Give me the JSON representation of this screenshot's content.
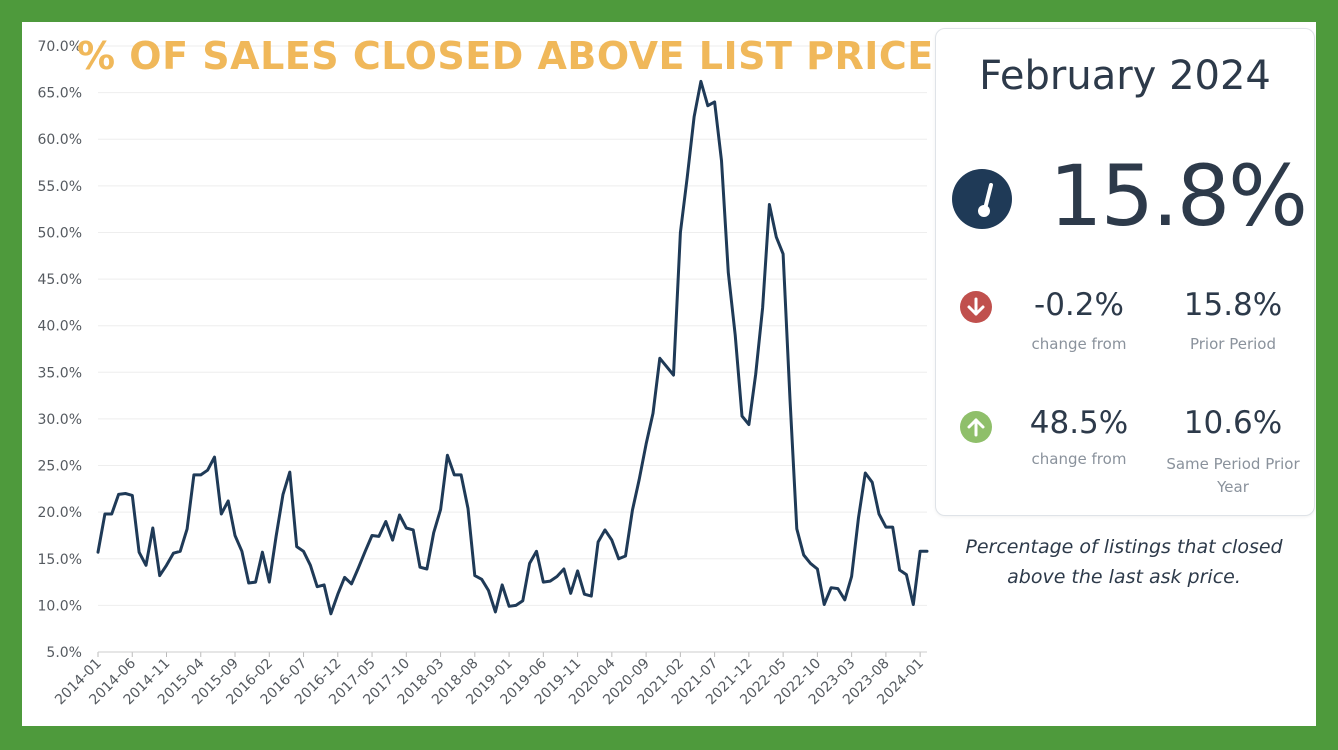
{
  "colors": {
    "frame": "#4e9a3c",
    "title": "#f0b85a",
    "line": "#1f3a57",
    "text_dark": "#2d3a4a",
    "text_muted": "#8a929c",
    "down": "#c0504d",
    "up": "#8fbf6a"
  },
  "chart_data": {
    "type": "line",
    "title": "% OF SALES CLOSED ABOVE LIST PRICE",
    "xlabel": "",
    "ylabel": "",
    "ylim": [
      5,
      70
    ],
    "y_ticks": [
      "70.0%",
      "65.0%",
      "60.0%",
      "55.0%",
      "50.0%",
      "45.0%",
      "40.0%",
      "35.0%",
      "30.0%",
      "25.0%",
      "20.0%",
      "15.0%",
      "10.0%",
      "5.0%"
    ],
    "x_tick_labels": [
      "2014-01",
      "2014-06",
      "2014-11",
      "2015-04",
      "2015-09",
      "2016-02",
      "2016-07",
      "2016-12",
      "2017-05",
      "2017-10",
      "2018-03",
      "2018-08",
      "2019-01",
      "2019-06",
      "2019-11",
      "2020-04",
      "2020-09",
      "2021-02",
      "2021-07",
      "2021-12",
      "2022-05",
      "2022-10",
      "2023-03",
      "2023-08",
      "2024-01"
    ],
    "x_start": "2014-01",
    "x_end": "2024-02",
    "grid": true,
    "series": [
      {
        "values": [
          15.7,
          19.8,
          19.8,
          21.9,
          22.0,
          21.8,
          15.7,
          14.3,
          18.3,
          13.2,
          14.3,
          15.6,
          15.8,
          18.2,
          24.0,
          24.0,
          24.5,
          25.9,
          19.8,
          21.2,
          17.5,
          15.8,
          12.4,
          12.5,
          15.7,
          12.5,
          17.4,
          21.9,
          24.3,
          16.3,
          15.8,
          14.3,
          12.0,
          12.2,
          9.1,
          11.2,
          13.0,
          12.3,
          14.0,
          15.8,
          17.5,
          17.4,
          19.0,
          17.0,
          19.7,
          18.3,
          18.1,
          14.1,
          13.9,
          17.8,
          20.3,
          26.1,
          24.0,
          24.0,
          20.4,
          13.2,
          12.8,
          11.6,
          9.3,
          12.2,
          9.9,
          10.0,
          10.5,
          14.5,
          15.8,
          12.5,
          12.6,
          13.1,
          13.9,
          11.3,
          13.7,
          11.2,
          11.0,
          16.8,
          18.1,
          17.0,
          15.0,
          15.3,
          20.2,
          23.5,
          27.3,
          30.6,
          36.5,
          35.6,
          34.7,
          50.0,
          55.9,
          62.4,
          66.2,
          63.6,
          64.0,
          57.7,
          45.7,
          39.0,
          30.3,
          29.4,
          34.8,
          41.9,
          53.0,
          49.5,
          47.7,
          32.1,
          18.2,
          15.4,
          14.5,
          13.9,
          10.1,
          11.9,
          11.8,
          10.6,
          13.1,
          19.4,
          24.2,
          23.2,
          19.8,
          18.4,
          18.4,
          13.8,
          13.3,
          10.1,
          15.8,
          15.8
        ]
      }
    ]
  },
  "card": {
    "month": "February 2024",
    "big_value": "15.8%",
    "row1": {
      "value": "-0.2%",
      "label": "change from",
      "ref_value": "15.8%",
      "ref_label": "Prior Period"
    },
    "row2": {
      "value": "48.5%",
      "label": "change from",
      "ref_value": "10.6%",
      "ref_label_1": "Same Period Prior",
      "ref_label_2": "Year"
    }
  },
  "caption": {
    "line1": "Percentage of listings that closed",
    "line2": "above the last ask price."
  }
}
